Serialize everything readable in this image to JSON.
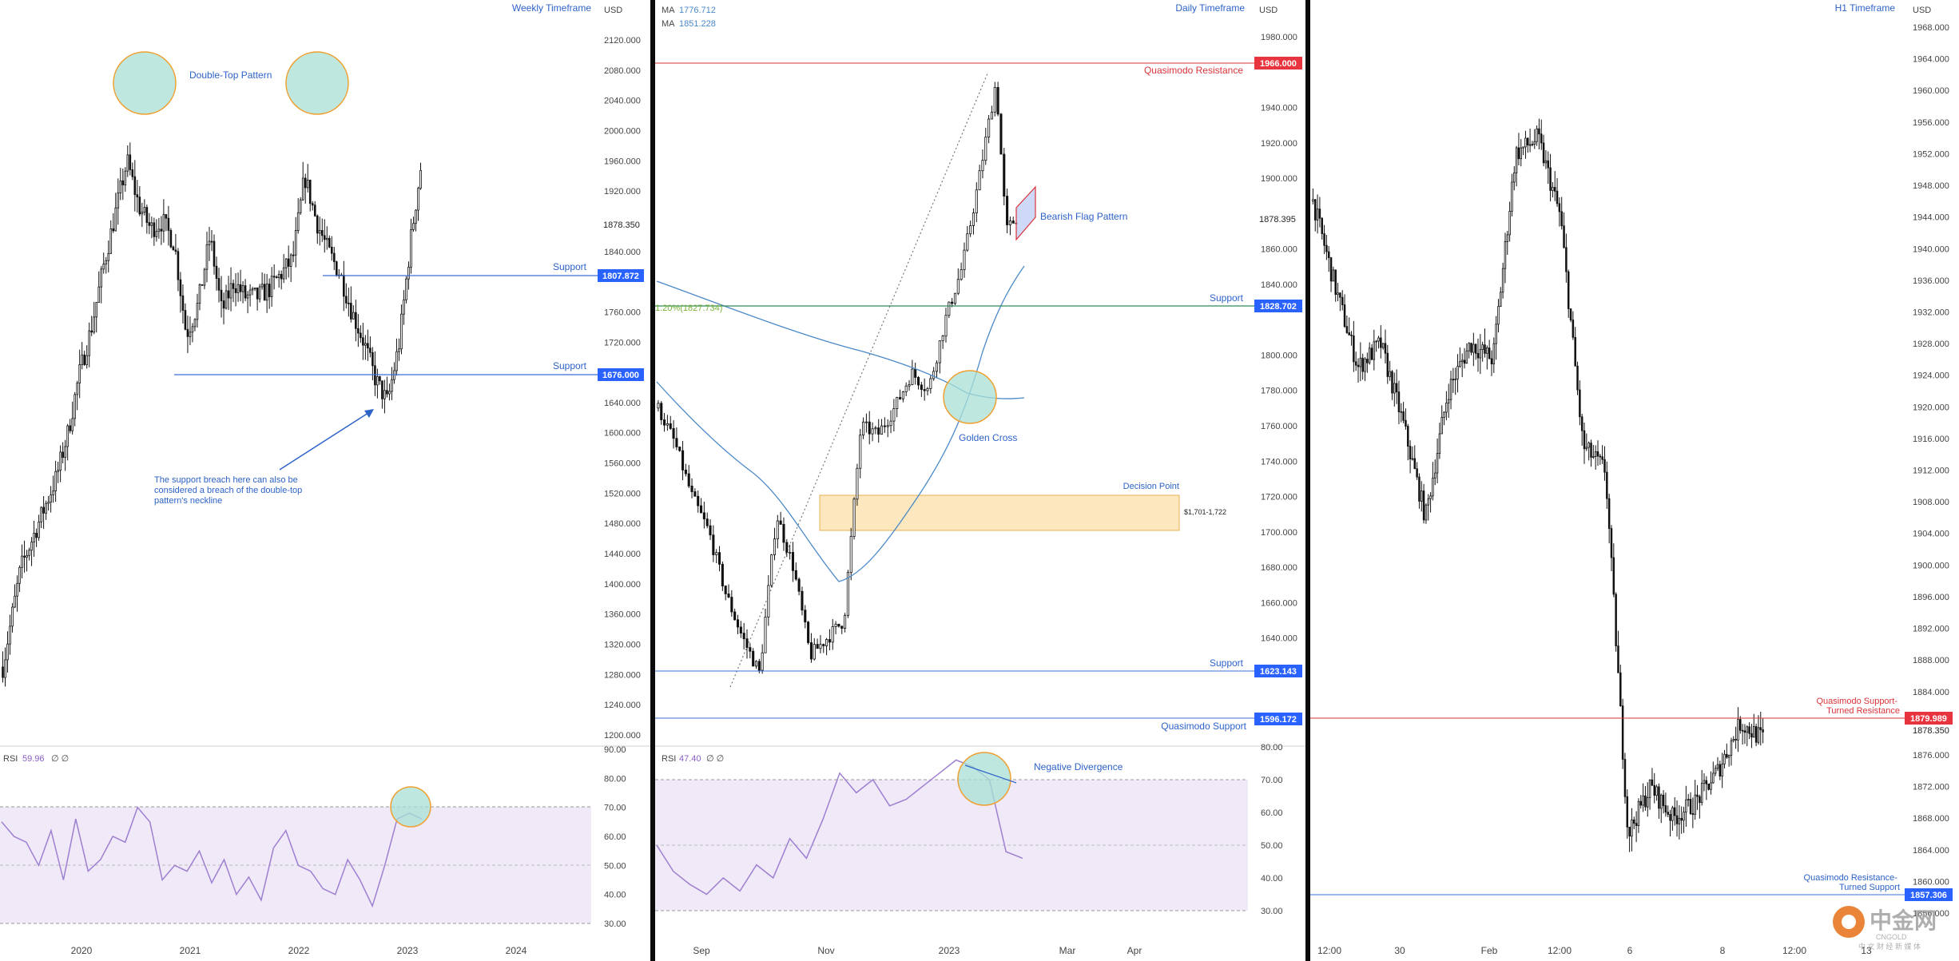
{
  "colors": {
    "panel_divider": "#0b0b0b",
    "candle": "#111111",
    "support_line": "#3d6fd6",
    "resistance_line": "#d9343a",
    "support_badge": "#2962ff",
    "resistance_badge": "#e8343e",
    "ma_line": "#4a89c8",
    "fib_line": "#2e8b57",
    "rsi_line": "#9e7fd0",
    "rsi_band": "#efe9f8",
    "highlight_circle_fill": "#a8e0d4",
    "highlight_circle_stroke": "#f0a030",
    "decision_zone_fill": "#fbe3b4",
    "decision_zone_stroke": "#e8b050",
    "annotation_text": "#2d62c8",
    "axis_text": "#444444"
  },
  "chart_data": [
    {
      "type": "line",
      "panel": "weekly",
      "title": "Weekly Timeframe",
      "currency": "USD",
      "y_ticks": [
        "2120.000",
        "2080.000",
        "2040.000",
        "2000.000",
        "1960.000",
        "1920.000",
        "1878.350",
        "1840.000",
        "1807.872",
        "1760.000",
        "1720.000",
        "1676.000",
        "1640.000",
        "1600.000",
        "1560.000",
        "1520.000",
        "1480.000",
        "1440.000",
        "1400.000",
        "1360.000",
        "1320.000",
        "1280.000",
        "1240.000",
        "1200.000"
      ],
      "x_ticks": [
        "2020",
        "2021",
        "2022",
        "2023",
        "2024"
      ],
      "series": [
        {
          "x": [
            2019.55,
            2019.7,
            2019.85,
            2020.0,
            2020.1,
            2020.2,
            2020.3,
            2020.4,
            2020.5,
            2020.6,
            2020.7,
            2020.8,
            2020.9,
            2021.0,
            2021.1,
            2021.2,
            2021.3,
            2021.4,
            2021.5,
            2021.6,
            2021.7,
            2021.8,
            2021.9,
            2022.0,
            2022.1,
            2022.2,
            2022.3,
            2022.4,
            2022.5,
            2022.6,
            2022.7,
            2022.8,
            2022.9,
            2023.0,
            2023.08
          ],
          "values": [
            1290,
            1420,
            1480,
            1540,
            1600,
            1680,
            1740,
            1820,
            1890,
            1960,
            1900,
            1870,
            1880,
            1850,
            1730,
            1770,
            1860,
            1760,
            1800,
            1780,
            1780,
            1790,
            1810,
            1830,
            1940,
            1880,
            1840,
            1810,
            1760,
            1720,
            1670,
            1640,
            1720,
            1860,
            1950
          ]
        }
      ],
      "levels": [
        {
          "label": "Support",
          "value": 1807.872,
          "badge": "1807.872"
        },
        {
          "label": "Support",
          "value": 1676.0,
          "badge": "1676.000"
        }
      ],
      "current_price": "1878.350",
      "annotations": [
        "Double-Top Pattern",
        "The support breach here can also be considered a breach of the double-top pattern's neckline"
      ],
      "rsi": {
        "label": "RSI",
        "value": "59.96",
        "extra": "∅ ∅",
        "y_ticks": [
          "90.00",
          "80.00",
          "70.00",
          "60.00",
          "50.00",
          "40.00",
          "30.00"
        ],
        "values": [
          65,
          60,
          58,
          50,
          62,
          45,
          66,
          48,
          52,
          60,
          58,
          70,
          65,
          45,
          50,
          48,
          55,
          44,
          52,
          40,
          46,
          38,
          56,
          62,
          50,
          48,
          42,
          40,
          52,
          45,
          36,
          50,
          66,
          68,
          66
        ]
      }
    },
    {
      "type": "line",
      "panel": "daily",
      "title": "Daily Timeframe",
      "currency": "USD",
      "ma": [
        {
          "label": "MA",
          "value": "1776.712"
        },
        {
          "label": "MA",
          "value": "1851.228"
        }
      ],
      "y_ticks": [
        "1980.000",
        "1966.000",
        "1940.000",
        "1920.000",
        "1900.000",
        "1878.395",
        "1860.000",
        "1840.000",
        "1828.702",
        "1800.000",
        "1780.000",
        "1760.000",
        "1740.000",
        "1720.000",
        "1700.000",
        "1680.000",
        "1660.000",
        "1640.000",
        "1623.143",
        "1596.172"
      ],
      "x_ticks": [
        "Sep",
        "Nov",
        "2023",
        "Mar",
        "Apr"
      ],
      "series": [
        {
          "x": [
            0,
            5,
            10,
            15,
            20,
            25,
            30,
            35,
            40,
            45,
            50,
            55,
            60,
            65,
            70,
            75,
            80,
            85,
            90,
            95,
            100,
            103,
            106
          ],
          "values": [
            1770,
            1750,
            1720,
            1700,
            1665,
            1640,
            1620,
            1710,
            1680,
            1630,
            1640,
            1650,
            1760,
            1755,
            1770,
            1790,
            1780,
            1820,
            1850,
            1900,
            1955,
            1870,
            1878
          ]
        }
      ],
      "levels": [
        {
          "label": "Quasimodo Resistance",
          "value": 1966.0,
          "badge": "1966.000"
        },
        {
          "label": "Support",
          "value": 1828.702,
          "badge": "1828.702"
        },
        {
          "label": "Support",
          "value": 1623.143,
          "badge": "1623.143"
        },
        {
          "label": "Quasimodo Support",
          "value": 1596.172,
          "badge": "1596.172"
        }
      ],
      "current_price": "1878.395",
      "fib_label": "1.20%(1827.734)",
      "decision_point": {
        "label": "Decision Point",
        "range_label": "$1,701-1,722",
        "low": 1701,
        "high": 1722
      },
      "annotations": [
        "Bearish Flag Pattern",
        "Golden Cross",
        "Negative Divergence"
      ],
      "rsi": {
        "label": "RSI",
        "value": "47.40",
        "extra": "∅ ∅",
        "y_ticks": [
          "80.00",
          "70.00",
          "60.00",
          "50.00",
          "40.00",
          "30.00"
        ],
        "values": [
          50,
          42,
          38,
          35,
          40,
          36,
          44,
          40,
          52,
          46,
          58,
          72,
          66,
          70,
          62,
          64,
          68,
          72,
          76,
          74,
          70,
          48,
          46
        ]
      }
    },
    {
      "type": "line",
      "panel": "h1",
      "title": "H1 Timeframe",
      "currency": "USD",
      "y_ticks": [
        "1968.000",
        "1964.000",
        "1960.000",
        "1956.000",
        "1952.000",
        "1948.000",
        "1944.000",
        "1940.000",
        "1936.000",
        "1932.000",
        "1928.000",
        "1924.000",
        "1920.000",
        "1916.000",
        "1912.000",
        "1908.000",
        "1904.000",
        "1900.000",
        "1896.000",
        "1892.000",
        "1888.000",
        "1884.000",
        "1879.989",
        "1878.350",
        "1876.000",
        "1872.000",
        "1868.000",
        "1864.000",
        "1860.000",
        "1857.306",
        "1856.000"
      ],
      "x_ticks": [
        "12:00",
        "30",
        "Feb",
        "12:00",
        "6",
        "8",
        "12:00",
        "13"
      ],
      "series": [
        {
          "x": [
            0,
            5,
            10,
            15,
            20,
            25,
            30,
            35,
            40,
            45,
            50,
            55,
            60,
            65,
            70,
            75,
            80,
            85,
            90,
            95,
            100
          ],
          "values": [
            1946,
            1935,
            1925,
            1928,
            1918,
            1906,
            1922,
            1928,
            1926,
            1952,
            1954,
            1944,
            1915,
            1912,
            1866,
            1872,
            1868,
            1870,
            1874,
            1880,
            1878
          ]
        }
      ],
      "levels": [
        {
          "label": "Quasimodo Support-Turned Resistance",
          "value": 1879.989,
          "badge": "1879.989"
        },
        {
          "label": "Quasimodo Resistance-Turned Support",
          "value": 1857.306,
          "badge": "1857.306"
        }
      ],
      "current_price": "1878.350"
    }
  ],
  "watermark": {
    "cn": "中金网",
    "sub": "CNGOLD",
    "tag": "中 文 财 经 新 媒 体"
  }
}
